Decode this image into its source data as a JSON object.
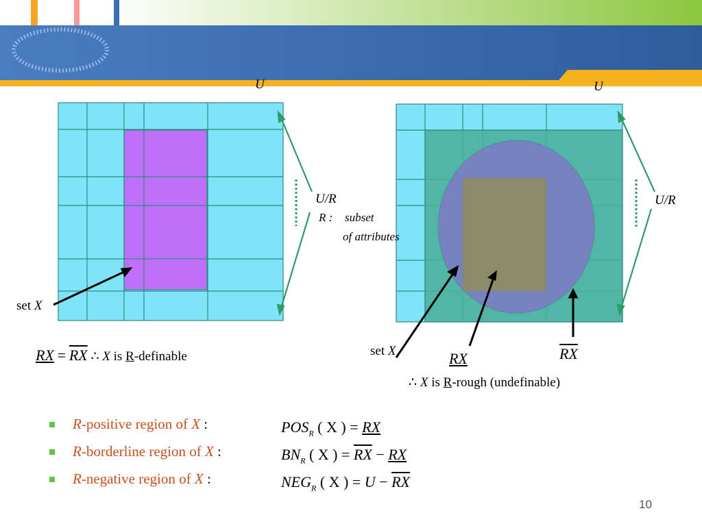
{
  "left_figure": {
    "universe": "U",
    "partition": "U/R",
    "relation_name": "R :",
    "relation_text": "subset",
    "relation_text_2": "of attributes",
    "set_label": "set",
    "set_symbol": "X",
    "equation_lower": "RX",
    "equation_sign": "=",
    "equation_upper": "RX",
    "therefore": "∴",
    "conclusion_symbol": "X",
    "conclusion_is": "is",
    "conclusion_r": "R",
    "conclusion_rest": "-definable"
  },
  "right_figure": {
    "universe": "U",
    "partition": "U/R",
    "set_label": "set",
    "set_symbol": "X",
    "lower": "RX",
    "upper": "RX",
    "therefore": "∴",
    "conclusion_symbol": "X",
    "conclusion_is": "is",
    "conclusion_r": "R",
    "conclusion_rest": "-rough (undefinable)"
  },
  "bullets": [
    {
      "r": "R",
      "text": "-positive region of",
      "x": "X",
      "colon": ":",
      "lhs": "POS",
      "sub": "R",
      "args": "( X ) =",
      "rhs_1": "RX"
    },
    {
      "r": "R",
      "text": "-borderline region of",
      "x": "X",
      "colon": ":",
      "lhs": "BN",
      "sub": "R",
      "args": "( X ) =",
      "rhs_1": "RX",
      "minus": "−",
      "rhs_2": "RX"
    },
    {
      "r": "R",
      "text": "-negative region of",
      "x": "X",
      "colon": ":",
      "lhs": "NEG",
      "sub": "R",
      "args": "( X ) =",
      "rhs_0": "U",
      "minus": "−",
      "rhs_2": "RX"
    }
  ],
  "page_number": "10"
}
